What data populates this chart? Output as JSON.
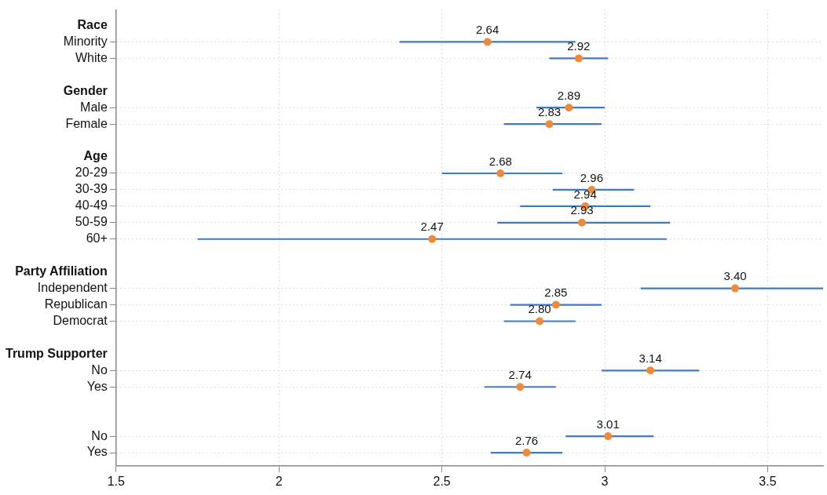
{
  "chart_data": {
    "type": "scatter",
    "orientation": "horizontal",
    "categories": [
      "Race",
      "Minority",
      "White",
      null,
      "Gender",
      "Male",
      "Female",
      null,
      "Age",
      "20-29",
      "30-39",
      "40-49",
      "50-59",
      "60+",
      null,
      "Party Affiliation",
      "Independent",
      "Republican",
      "Democrat",
      null,
      "Trump Supporter",
      "No",
      "Yes",
      null,
      null,
      "No",
      "Yes"
    ],
    "series": [
      {
        "color": "#ee8a3a",
        "marker": "circle",
        "values": [
          null,
          2.64,
          2.92,
          null,
          null,
          2.89,
          2.83,
          null,
          null,
          2.68,
          2.96,
          2.94,
          2.93,
          2.47,
          null,
          null,
          3.4,
          2.85,
          2.8,
          null,
          null,
          3.14,
          2.74,
          null,
          null,
          3.01,
          2.76
        ],
        "value_labels": [
          null,
          "2.64",
          "2.92",
          null,
          null,
          "2.89",
          "2.83",
          null,
          null,
          "2.68",
          "2.96",
          "2.94",
          "2.93",
          "2.47",
          null,
          null,
          "3.40",
          "2.85",
          "2.80",
          null,
          null,
          "3.14",
          "2.74",
          null,
          null,
          "3.01",
          "2.76"
        ],
        "errors": [
          null,
          [
            2.37,
            2.91
          ],
          [
            2.83,
            3.01
          ],
          null,
          null,
          [
            2.79,
            3.0
          ],
          [
            2.69,
            2.99
          ],
          null,
          null,
          [
            2.5,
            2.87
          ],
          [
            2.84,
            3.09
          ],
          [
            2.74,
            3.14
          ],
          [
            2.67,
            3.2
          ],
          [
            1.75,
            3.19
          ],
          null,
          null,
          [
            3.11,
            3.67
          ],
          [
            2.71,
            2.99
          ],
          [
            2.69,
            2.91
          ],
          null,
          null,
          [
            2.99,
            3.29
          ],
          [
            2.63,
            2.85
          ],
          null,
          null,
          [
            2.88,
            3.15
          ],
          [
            2.65,
            2.87
          ]
        ]
      }
    ],
    "xlim": [
      1.5,
      3.67
    ],
    "xticks": [
      1.5,
      2,
      2.5,
      3,
      3.5
    ],
    "grid": true
  }
}
